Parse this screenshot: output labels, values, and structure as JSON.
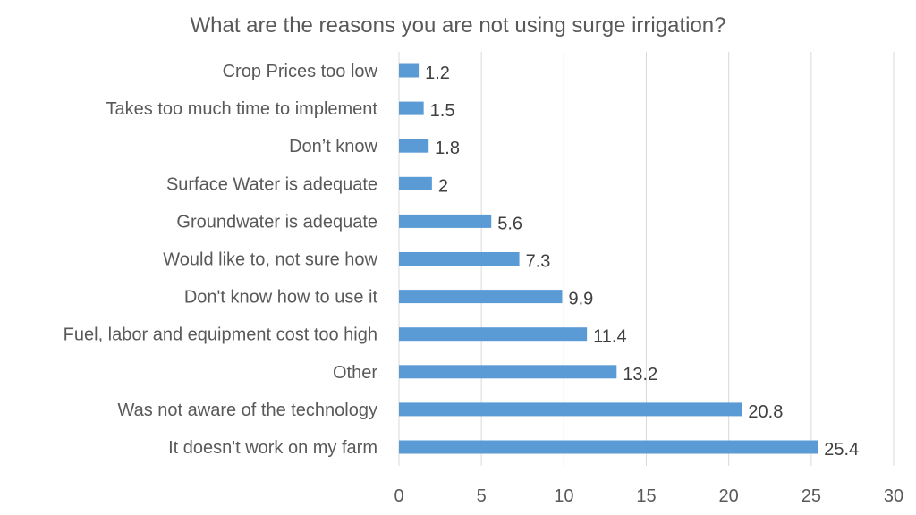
{
  "chart_data": {
    "type": "bar",
    "orientation": "horizontal",
    "title": "What are the reasons you are not using surge irrigation?",
    "categories": [
      "Crop Prices too low",
      "Takes too much time to implement",
      "Don’t know",
      "Surface Water is adequate",
      "Groundwater is adequate",
      "Would like to, not sure how",
      "Don't know how to use it",
      "Fuel, labor and equipment cost too high",
      "Other",
      "Was not aware of the technology",
      "It doesn't work on my farm"
    ],
    "values": [
      1.2,
      1.5,
      1.8,
      2,
      5.6,
      7.3,
      9.9,
      11.4,
      13.2,
      20.8,
      25.4
    ],
    "data_labels": [
      "1.2",
      "1.5",
      "1.8",
      "2",
      "5.6",
      "7.3",
      "9.9",
      "11.4",
      "13.2",
      "20.8",
      "25.4"
    ],
    "xlim": [
      0,
      30
    ],
    "x_ticks": [
      "0",
      "5",
      "10",
      "15",
      "20",
      "25",
      "30"
    ],
    "xlabel": "",
    "ylabel": "",
    "grid": "vertical",
    "legend": "none",
    "bar_color": "#5B9BD5"
  }
}
